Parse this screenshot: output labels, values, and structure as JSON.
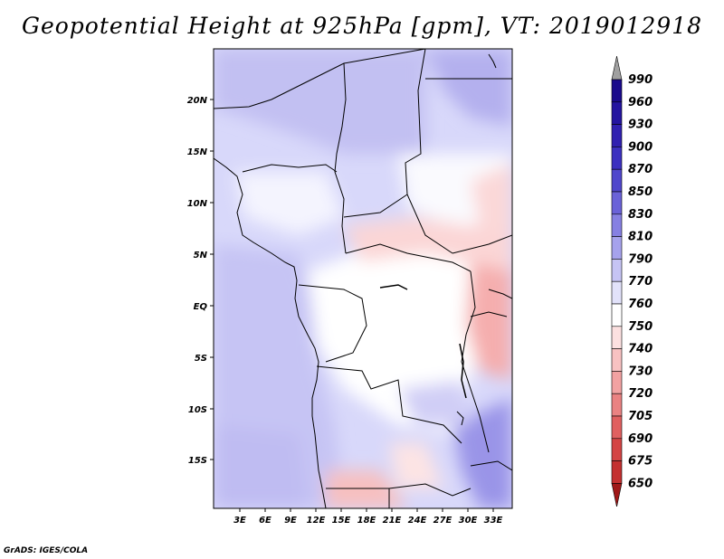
{
  "title": "Geopotential Height at 925hPa [gpm], VT: 2019012918",
  "credit": "GrADS: IGES/COLA",
  "map": {
    "region": "Central Africa",
    "lat_labels": [
      "20N",
      "15N",
      "10N",
      "5N",
      "EQ",
      "5S",
      "10S",
      "15S"
    ],
    "lon_labels": [
      "3E",
      "6E",
      "9E",
      "12E",
      "15E",
      "18E",
      "21E",
      "24E",
      "27E",
      "30E",
      "33E"
    ]
  },
  "colorbar": {
    "levels": [
      "990",
      "960",
      "930",
      "900",
      "870",
      "850",
      "830",
      "810",
      "790",
      "770",
      "760",
      "750",
      "740",
      "730",
      "720",
      "705",
      "690",
      "675",
      "650"
    ],
    "colors": [
      "#1a0a8c",
      "#2414a0",
      "#3020b0",
      "#3c30c0",
      "#5046cc",
      "#6a62d8",
      "#8680e2",
      "#a6a2ec",
      "#c6c4f4",
      "#e2e2fa",
      "#ffffff",
      "#fce0e0",
      "#f8c2c2",
      "#f2a2a2",
      "#ea8282",
      "#e06060",
      "#d44444",
      "#c43030",
      "#b41e1e"
    ],
    "top_arrow_color": "#a0a0a0",
    "bottom_arrow_color": "#a01818"
  }
}
